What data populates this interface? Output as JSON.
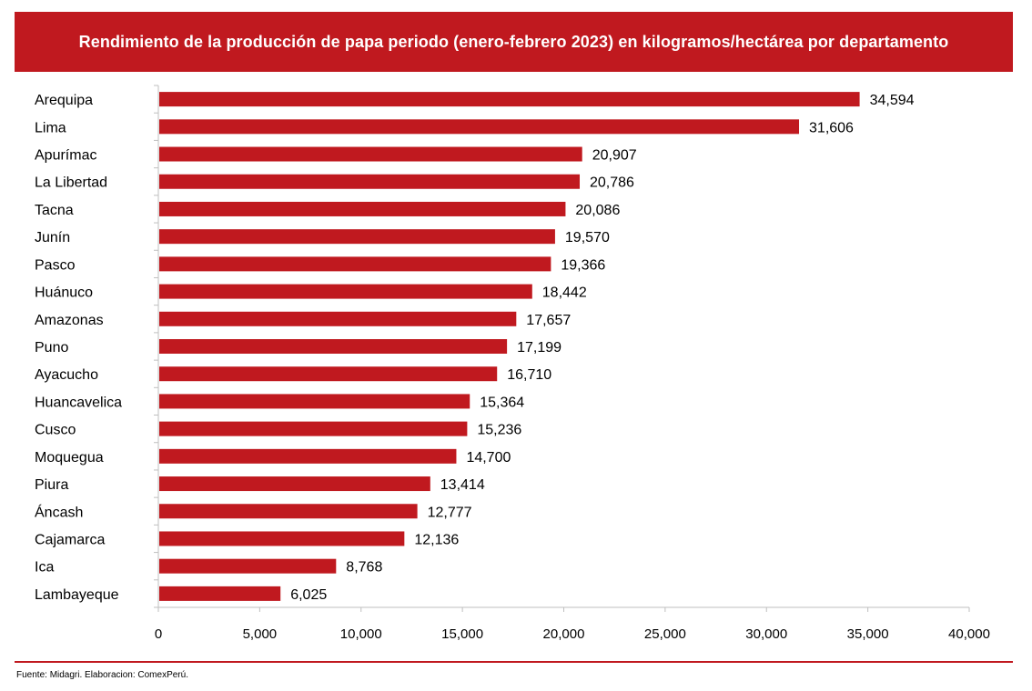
{
  "title": "Rendimiento de la producción de papa periodo (enero-febrero 2023) en kilogramos/hectárea por departamento",
  "source": "Fuente: Midagri. Elaboracion: ComexPerú.",
  "colors": {
    "bar": "#c0191f",
    "banner": "#c0191f",
    "axis": "#bfbfbf",
    "text": "#000000"
  },
  "chart_data": {
    "type": "bar",
    "orientation": "horizontal",
    "title": "Rendimiento de la producción de papa periodo (enero-febrero 2023) en kilogramos/hectárea por departamento",
    "xlabel": "",
    "ylabel": "",
    "xlim": [
      0,
      40000
    ],
    "grid": false,
    "categories": [
      "Arequipa",
      "Lima",
      "Apurímac",
      "La Libertad",
      "Tacna",
      "Junín",
      "Pasco",
      "Huánuco",
      "Amazonas",
      "Puno",
      "Ayacucho",
      "Huancavelica",
      "Cusco",
      "Moquegua",
      "Piura",
      "Áncash",
      "Cajamarca",
      "Ica",
      "Lambayeque"
    ],
    "values": [
      34594,
      31606,
      20907,
      20786,
      20086,
      19570,
      19366,
      18442,
      17657,
      17199,
      16710,
      15364,
      15236,
      14700,
      13414,
      12777,
      12136,
      8768,
      6025
    ],
    "value_labels": [
      "34,594",
      "31,606",
      "20,907",
      "20,786",
      "20,086",
      "19,570",
      "19,366",
      "18,442",
      "17,657",
      "17,199",
      "16,710",
      "15,364",
      "15,236",
      "14,700",
      "13,414",
      "12,777",
      "12,136",
      "8,768",
      "6,025"
    ],
    "xticks": [
      0,
      5000,
      10000,
      15000,
      20000,
      25000,
      30000,
      35000,
      40000
    ],
    "xtick_labels": [
      "0",
      "5,000",
      "10,000",
      "15,000",
      "20,000",
      "25,000",
      "30,000",
      "35,000",
      "40,000"
    ]
  }
}
